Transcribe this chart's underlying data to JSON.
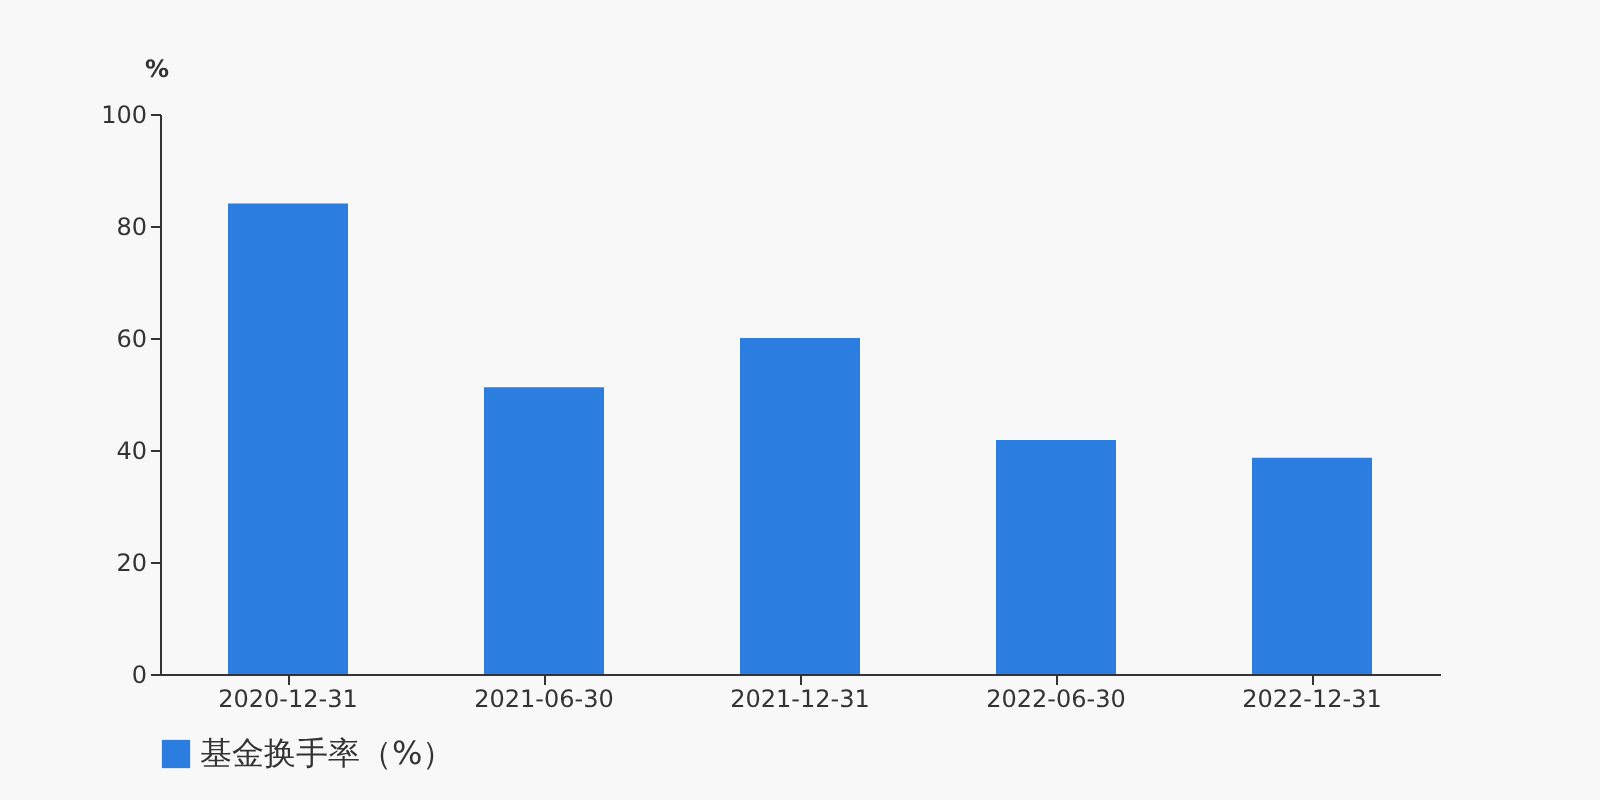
{
  "chart_data": {
    "type": "bar",
    "ylabel": "%",
    "categories": [
      "2020-12-31",
      "2021-06-30",
      "2021-12-31",
      "2022-06-30",
      "2022-12-31"
    ],
    "series": [
      {
        "name": "基金换手率（%）",
        "color": "#2b7de0",
        "values": [
          84.0,
          51.2,
          60.0,
          41.8,
          38.6
        ]
      }
    ],
    "ylim": [
      0,
      100
    ],
    "yticks": [
      0,
      20,
      40,
      60,
      80,
      100
    ],
    "grid": false,
    "legend": "bottom"
  }
}
